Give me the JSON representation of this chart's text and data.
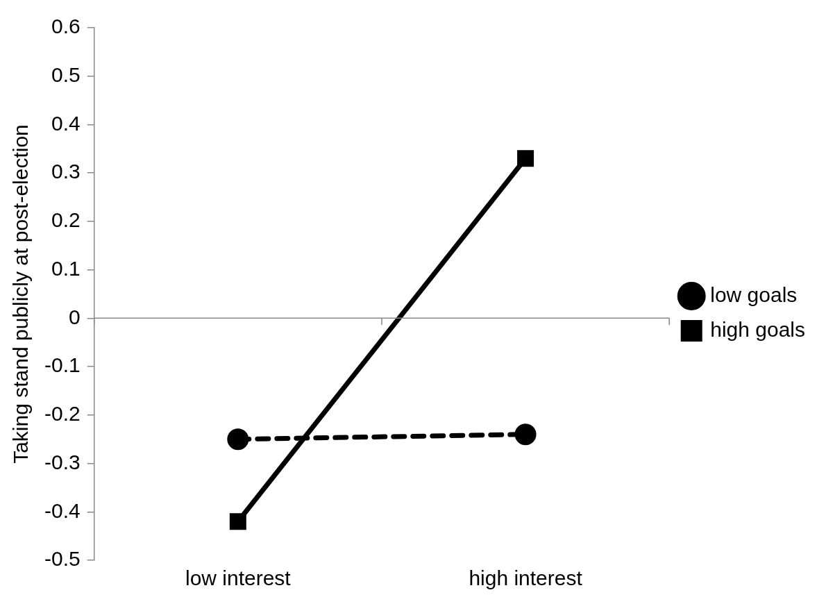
{
  "chart_data": {
    "type": "line",
    "ylabel": "Taking stand publicly at post-election",
    "categories": [
      "low interest",
      "high interest"
    ],
    "series": [
      {
        "name": "low goals",
        "color": "#000000",
        "values": [
          -0.25,
          -0.24
        ],
        "marker": "circle",
        "line_style": "dashed"
      },
      {
        "name": "high goals",
        "color": "#000000",
        "values": [
          -0.42,
          0.33
        ],
        "marker": "square",
        "line_style": "solid"
      }
    ],
    "ylim": [
      -0.5,
      0.6
    ],
    "yticks": [
      -0.5,
      -0.4,
      -0.3,
      -0.2,
      -0.1,
      0,
      0.1,
      0.2,
      0.3,
      0.4,
      0.5,
      0.6
    ],
    "legend": "right"
  }
}
